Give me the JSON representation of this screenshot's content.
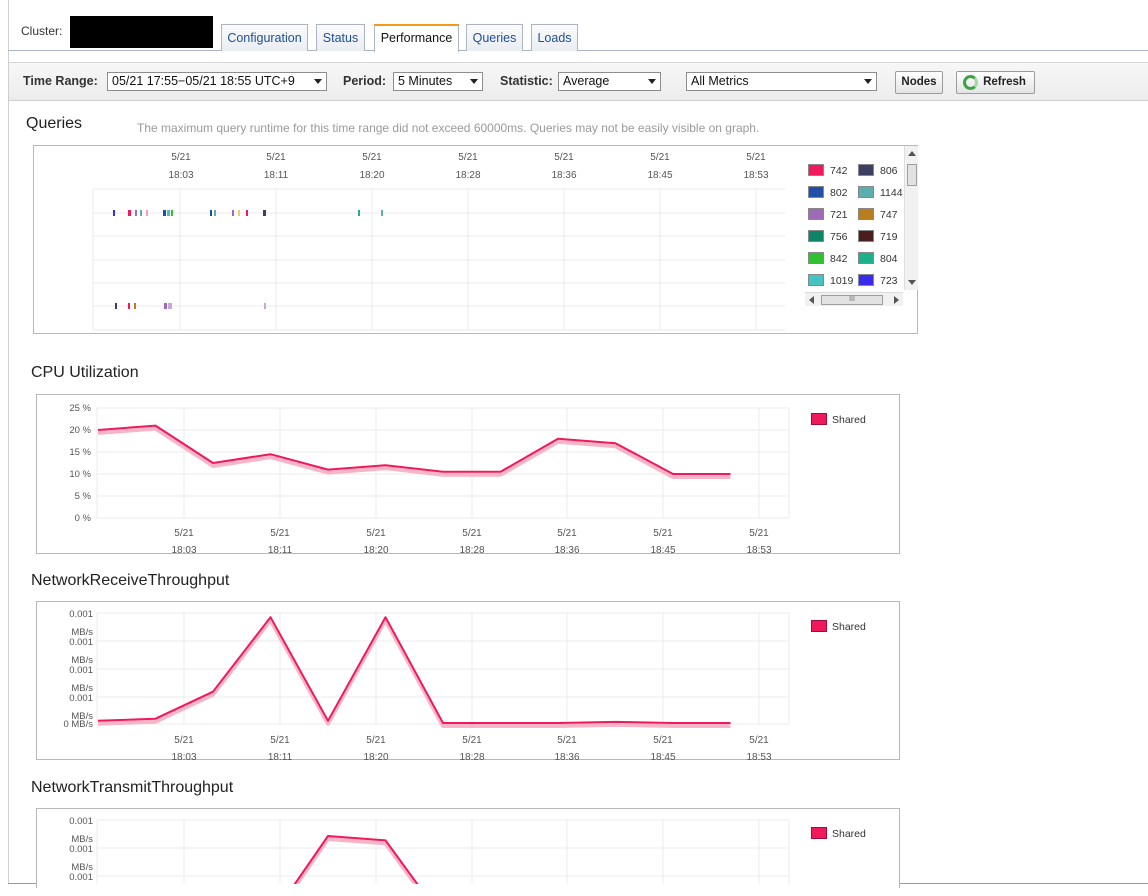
{
  "header": {
    "cluster_label": "Cluster:",
    "tabs": [
      {
        "label": "Configuration",
        "active": false
      },
      {
        "label": "Status",
        "active": false
      },
      {
        "label": "Performance",
        "active": true
      },
      {
        "label": "Queries",
        "active": false
      },
      {
        "label": "Loads",
        "active": false
      }
    ]
  },
  "toolbar": {
    "time_range_label": "Time Range:",
    "time_range_value": "05/21 17:55−05/21 18:55 UTC+9",
    "period_label": "Period:",
    "period_value": "5 Minutes",
    "statistic_label": "Statistic:",
    "statistic_value": "Average",
    "metrics_value": "All Metrics",
    "nodes_label": "Nodes",
    "refresh_label": "Refresh"
  },
  "queries": {
    "title": "Queries",
    "note": "The maximum query runtime for this time range did not exceed 60000ms. Queries may not be easily visible on graph.",
    "x_ticks": [
      {
        "date": "5/21",
        "time": "18:03"
      },
      {
        "date": "5/21",
        "time": "18:11"
      },
      {
        "date": "5/21",
        "time": "18:20"
      },
      {
        "date": "5/21",
        "time": "18:28"
      },
      {
        "date": "5/21",
        "time": "18:36"
      },
      {
        "date": "5/21",
        "time": "18:45"
      },
      {
        "date": "5/21",
        "time": "18:53"
      }
    ],
    "legend": [
      {
        "id": "742",
        "color": "#f0195b"
      },
      {
        "id": "806",
        "color": "#3c3f62"
      },
      {
        "id": "802",
        "color": "#1f4fa6"
      },
      {
        "id": "1144",
        "color": "#5aaeae"
      },
      {
        "id": "721",
        "color": "#9c6bb3"
      },
      {
        "id": "747",
        "color": "#b97d1e"
      },
      {
        "id": "756",
        "color": "#0e8567"
      },
      {
        "id": "719",
        "color": "#4a1e1e"
      },
      {
        "id": "842",
        "color": "#2fc12f"
      },
      {
        "id": "804",
        "color": "#19b28c"
      },
      {
        "id": "1019",
        "color": "#45c3c3"
      },
      {
        "id": "723",
        "color": "#3a2bea"
      }
    ]
  },
  "cpu": {
    "title": "CPU Utilization",
    "legend": "Shared",
    "y_ticks": [
      "25 %",
      "20 %",
      "15 %",
      "10 %",
      "5 %",
      "0 %"
    ]
  },
  "net_receive": {
    "title": "NetworkReceiveThroughput",
    "legend": "Shared",
    "y_ticks": [
      {
        "l1": "0.001",
        "l2": "MB/s"
      },
      {
        "l1": "0.001",
        "l2": "MB/s"
      },
      {
        "l1": "0.001",
        "l2": "MB/s"
      },
      {
        "l1": "0.001",
        "l2": "MB/s"
      },
      {
        "l1": "0 MB/s",
        "l2": ""
      }
    ]
  },
  "net_transmit": {
    "title": "NetworkTransmitThroughput",
    "legend": "Shared",
    "y_ticks": [
      {
        "l1": "0.001",
        "l2": "MB/s"
      },
      {
        "l1": "0.001",
        "l2": "MB/s"
      },
      {
        "l1": "0.001",
        "l2": ""
      }
    ]
  },
  "chart_data": [
    {
      "type": "line",
      "title": "CPU Utilization",
      "ylabel": "",
      "ylim": [
        0,
        25
      ],
      "x": [
        "17:55",
        "18:00",
        "18:05",
        "18:10",
        "18:15",
        "18:20",
        "18:25",
        "18:30",
        "18:35",
        "18:40",
        "18:45",
        "18:50"
      ],
      "series": [
        {
          "name": "Shared",
          "values": [
            20,
            21,
            12.5,
            14.5,
            11,
            12,
            10.5,
            10.5,
            18,
            17,
            10,
            10
          ]
        }
      ]
    },
    {
      "type": "line",
      "title": "NetworkReceiveThroughput",
      "ylabel": "",
      "ylim": [
        0,
        0.001
      ],
      "x": [
        "17:55",
        "18:00",
        "18:05",
        "18:10",
        "18:15",
        "18:20",
        "18:25",
        "18:30",
        "18:35",
        "18:40",
        "18:45",
        "18:50"
      ],
      "series": [
        {
          "name": "Shared",
          "values": [
            2e-05,
            4e-05,
            0.00029,
            0.00098,
            2e-05,
            0.00098,
            0.0,
            0.0,
            0.0,
            1e-05,
            0.0,
            0.0
          ]
        }
      ]
    },
    {
      "type": "line",
      "title": "NetworkTransmitThroughput",
      "ylabel": "",
      "ylim": [
        0,
        0.001
      ],
      "x": [
        "17:55",
        "18:00",
        "18:05",
        "18:10",
        "18:15",
        "18:20",
        "18:25"
      ],
      "series": [
        {
          "name": "Shared",
          "values": [
            null,
            null,
            null,
            0.0001,
            0.00087,
            0.00083,
            0.0001
          ]
        }
      ]
    }
  ]
}
